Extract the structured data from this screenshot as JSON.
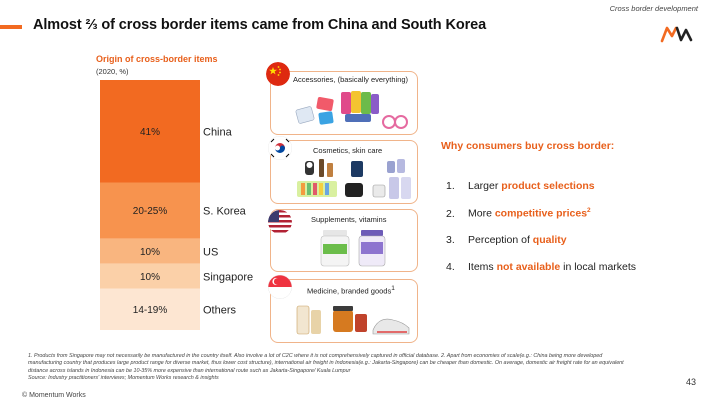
{
  "header": {
    "section_label": "Cross border development",
    "title": "Almost ⅔ of cross border items came from China and South Korea"
  },
  "chart_data": {
    "type": "bar",
    "stacked": true,
    "title": "Origin of cross-border items",
    "subtitle": "(2020, %)",
    "categories": [
      "China",
      "S. Korea",
      "US",
      "Singapore",
      "Others"
    ],
    "value_labels": [
      "41%",
      "20-25%",
      "10%",
      "10%",
      "14-19%"
    ],
    "values": [
      41,
      22.5,
      10,
      10,
      16.5
    ],
    "colors": [
      "#f26a21",
      "#f7934e",
      "#f9b57f",
      "#fbd0a8",
      "#fde6d2"
    ]
  },
  "cards": [
    {
      "label": "Accessories, (basically everything)",
      "flag": "china-flag"
    },
    {
      "label": "Cosmetics, skin care",
      "flag": "south-korea-flag"
    },
    {
      "label": "Supplements, vitamins",
      "flag": "us-flag"
    },
    {
      "label": "Medicine, branded goods",
      "label_sup": "1",
      "flag": "singapore-flag"
    }
  ],
  "reasons": {
    "title": "Why consumers buy cross border:",
    "items": [
      {
        "num": "1.",
        "pre": "Larger ",
        "highlight": "product selections",
        "post": "",
        "sup": ""
      },
      {
        "num": "2.",
        "pre": "More ",
        "highlight": "competitive prices",
        "post": "",
        "sup": "2"
      },
      {
        "num": "3.",
        "pre": "Perception of ",
        "highlight": "quality",
        "post": "",
        "sup": ""
      },
      {
        "num": "4.",
        "pre": "Items ",
        "highlight": "not available",
        "post": " in local markets",
        "sup": ""
      }
    ]
  },
  "footnotes": {
    "line1": "1.  Products from Singapore may not necessarily be manufactured in the country itself. Also involve a lot of C2C where it is not comprehensively captured in official database.       2. Apart from economies of scale(e.g.: China being more developed",
    "line2": "manufacturing country that produces large product range for diverse market, thus lower cost structure), international air freight in Indonesia(e.g.: Jakarta-Singapore) can be cheaper than domestic. On average, domestic air freight rate for an equivalent",
    "line3": "distance across islands in Indonesia can be 10-35% more expensive than international route such as Jakarta-Singapore/ Kuala Lumpur",
    "source": "Source: Industry practitioners' interviews; Momentum Works research & insights"
  },
  "page_number": "43",
  "copyright": "© Momentum Works",
  "colors": {
    "accent": "#f26a21",
    "card_border": "#f0b48a"
  }
}
